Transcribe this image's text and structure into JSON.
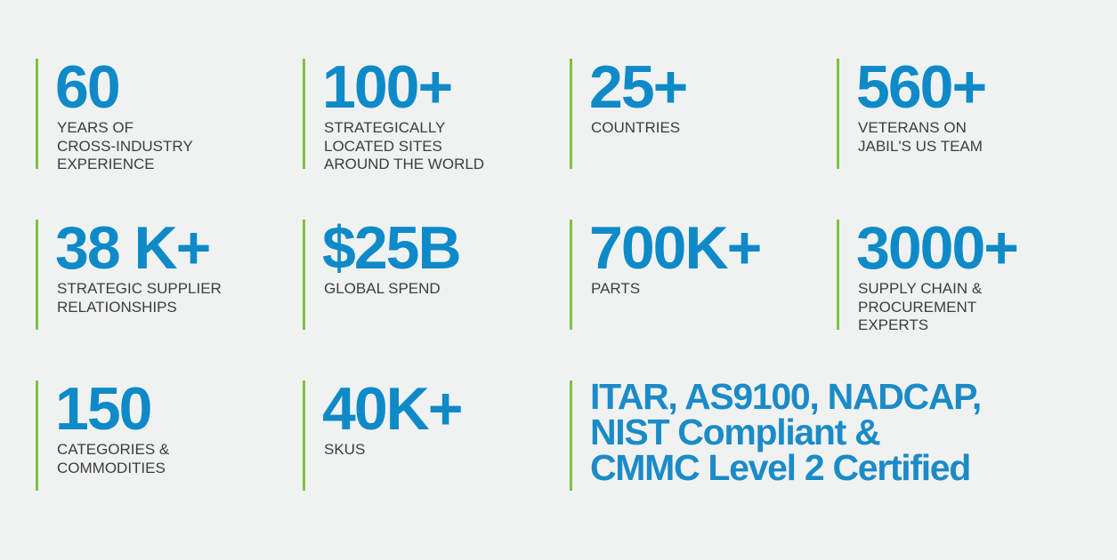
{
  "stats": [
    {
      "value": "60",
      "label": [
        "YEARS OF",
        "CROSS-INDUSTRY",
        "EXPERIENCE"
      ]
    },
    {
      "value": "100+",
      "label": [
        "STRATEGICALLY",
        "LOCATED SITES",
        "AROUND THE WORLD"
      ]
    },
    {
      "value": "25+",
      "label": [
        "COUNTRIES"
      ]
    },
    {
      "value": "560+",
      "label": [
        "VETERANS ON",
        "JABIL'S US TEAM"
      ]
    },
    {
      "value": "38 K+",
      "label": [
        "STRATEGIC SUPPLIER",
        "RELATIONSHIPS"
      ]
    },
    {
      "value": "$25B",
      "label": [
        "GLOBAL SPEND"
      ]
    },
    {
      "value": "700K+",
      "label": [
        "PARTS"
      ]
    },
    {
      "value": "3000+",
      "label": [
        "SUPPLY CHAIN &",
        "PROCUREMENT",
        "EXPERTS"
      ]
    },
    {
      "value": "150",
      "label": [
        "CATEGORIES &",
        "COMMODITIES"
      ]
    },
    {
      "value": "40K+",
      "label": [
        "SKUS"
      ]
    }
  ],
  "certification": [
    "ITAR, AS9100, NADCAP,",
    "NIST Compliant &",
    "CMMC Level 2 Certified"
  ]
}
